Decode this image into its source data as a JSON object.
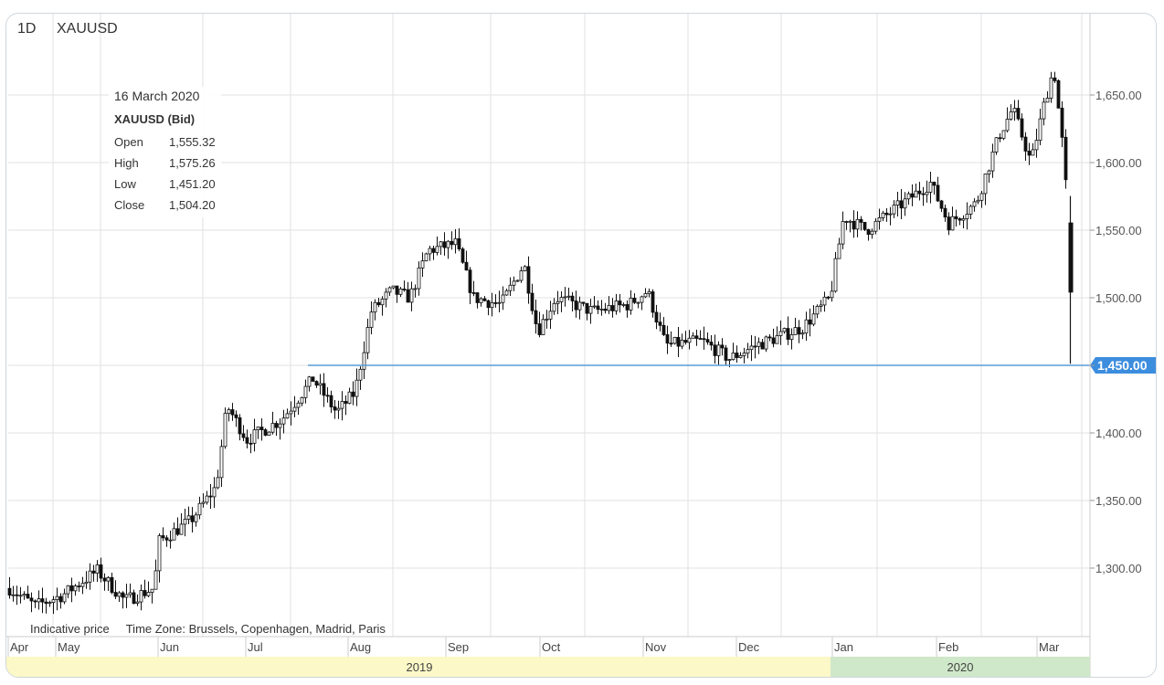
{
  "header": {
    "timeframe": "1D",
    "symbol": "XAUUSD"
  },
  "info": {
    "date": "16 March 2020",
    "instrument": "XAUUSD (Bid)",
    "rows": [
      {
        "label": "Open",
        "value": "1,555.32"
      },
      {
        "label": "High",
        "value": "1,575.26"
      },
      {
        "label": "Low",
        "value": "1,451.20"
      },
      {
        "label": "Close",
        "value": "1,504.20"
      }
    ]
  },
  "footer": {
    "indicative": "Indicative price",
    "timezone": "Time Zone: Brussels, Copenhagen, Madrid, Paris"
  },
  "colors": {
    "grid": "#e2e2e2",
    "candle": "#111111",
    "price_line": "#5b9bd5",
    "price_tag": "#3c8dde",
    "year_2019": "#fcf8c8",
    "year_2020": "#cfe8c9"
  },
  "chart_data": {
    "type": "candlestick",
    "ylim": [
      1250,
      1700
    ],
    "y_ticks": [
      "1,300.00",
      "1,350.00",
      "1,400.00",
      "1,450.00",
      "1,500.00",
      "1,550.00",
      "1,600.00",
      "1,650.00"
    ],
    "y_tick_values": [
      1300,
      1350,
      1400,
      1450,
      1500,
      1550,
      1600,
      1650
    ],
    "current_price": 1450,
    "current_price_label": "1,450.00",
    "x_labels": [
      "Apr",
      "May",
      "Jun",
      "Jul",
      "Aug",
      "Sep",
      "Oct",
      "Nov",
      "Dec",
      "Jan",
      "Feb",
      "Mar"
    ],
    "years": [
      {
        "label": "2019",
        "from": 0,
        "to": 9
      },
      {
        "label": "2020",
        "from": 9,
        "to": 12
      }
    ],
    "monthly_close_path": [
      {
        "month": "Apr",
        "value": 1275
      },
      {
        "month": "May",
        "value": 1285
      },
      {
        "month": "Jun",
        "value": 1320
      },
      {
        "month": "Jul",
        "value": 1410
      },
      {
        "month": "Aug",
        "value": 1430
      },
      {
        "month": "Sep",
        "value": 1530
      },
      {
        "month": "Oct",
        "value": 1490
      },
      {
        "month": "Nov",
        "value": 1500
      },
      {
        "month": "Dec",
        "value": 1460
      },
      {
        "month": "Jan",
        "value": 1520
      },
      {
        "month": "Feb",
        "value": 1585
      },
      {
        "month": "Mar",
        "value": 1640
      }
    ],
    "last_candle": {
      "open": 1555.32,
      "high": 1575.26,
      "low": 1451.2,
      "close": 1504.2
    }
  }
}
